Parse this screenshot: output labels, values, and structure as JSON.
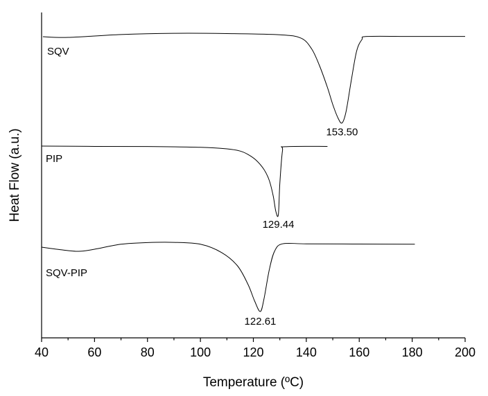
{
  "chart_data": {
    "type": "line",
    "title": "",
    "xlabel": "Temperature (ºC)",
    "ylabel": "Heat Flow (a.u.)",
    "xlim": [
      40,
      200
    ],
    "xticks": [
      "40",
      "60",
      "80",
      "100",
      "120",
      "140",
      "160",
      "180",
      "200"
    ],
    "y_ticks_shown": false,
    "grid": false,
    "legend": "none",
    "series": [
      {
        "name": "SQV",
        "peak_label": "153.50",
        "peak_x": 153.5,
        "x": [
          40.5,
          50,
          70,
          90,
          110,
          130,
          138,
          142,
          145,
          148,
          150,
          152,
          153.5,
          155,
          157,
          159,
          161,
          163,
          180,
          200
        ],
        "y": [
          0.0,
          -0.15,
          0.45,
          0.7,
          0.65,
          0.4,
          -0.3,
          -2.5,
          -6,
          -10.5,
          -14,
          -16.8,
          -17.8,
          -15.5,
          -9,
          -3,
          -0.6,
          0.05,
          0.05,
          0.05
        ]
      },
      {
        "name": "PIP",
        "peak_label": "129.44",
        "peak_x": 129.44,
        "x": [
          40,
          60,
          80,
          100,
          110,
          115,
          118,
          121,
          124,
          126,
          127.5,
          128.5,
          129.44,
          130,
          131,
          132,
          148
        ],
        "y": [
          0.0,
          -0.1,
          -0.15,
          -0.4,
          -0.9,
          -1.6,
          -2.7,
          -4.5,
          -7.5,
          -11,
          -16,
          -21,
          -22,
          -12,
          -1.5,
          -0.2,
          -0.1
        ]
      },
      {
        "name": "SQV-PIP",
        "peak_label": "122.61",
        "peak_x": 122.61,
        "x": [
          40,
          47,
          54,
          60,
          70,
          80,
          90,
          100,
          108,
          114,
          118,
          120.5,
          122.61,
          124,
          126,
          128,
          131,
          140,
          160,
          181
        ],
        "y": [
          -0.5,
          -1.1,
          -1.5,
          -1.0,
          0.2,
          0.6,
          0.65,
          0.2,
          -1.8,
          -5,
          -9.5,
          -13.5,
          -16,
          -13,
          -6,
          -1.5,
          0.3,
          0.3,
          0.25,
          0.2
        ]
      }
    ]
  }
}
